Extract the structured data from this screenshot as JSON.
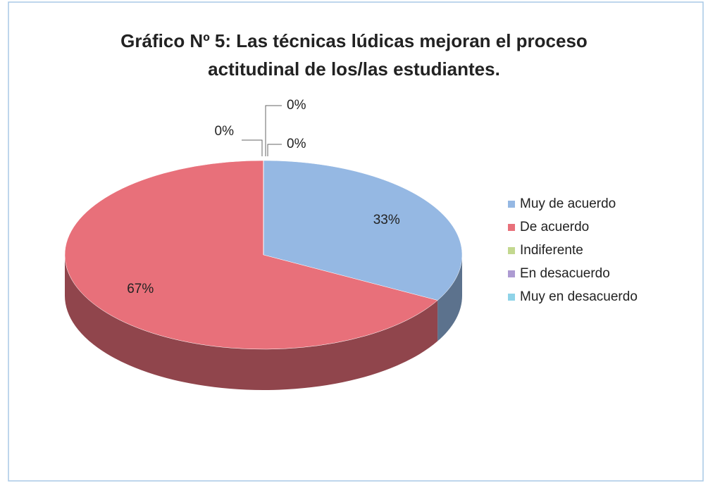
{
  "chart_data": {
    "type": "pie",
    "title": "Gráfico Nº 5: Las técnicas lúdicas mejoran el proceso actitudinal de los/las estudiantes.",
    "categories": [
      "Muy de acuerdo",
      "De acuerdo",
      "Indiferente",
      "En desacuerdo",
      "Muy en desacuerdo"
    ],
    "values": [
      33,
      67,
      0,
      0,
      0
    ],
    "value_labels": [
      "33%",
      "67%",
      "0%",
      "0%",
      "0%"
    ],
    "colors": [
      "#95b8e3",
      "#e8707a",
      "#c3d88f",
      "#ad9bd2",
      "#8fd3e8"
    ],
    "legend": "right"
  }
}
